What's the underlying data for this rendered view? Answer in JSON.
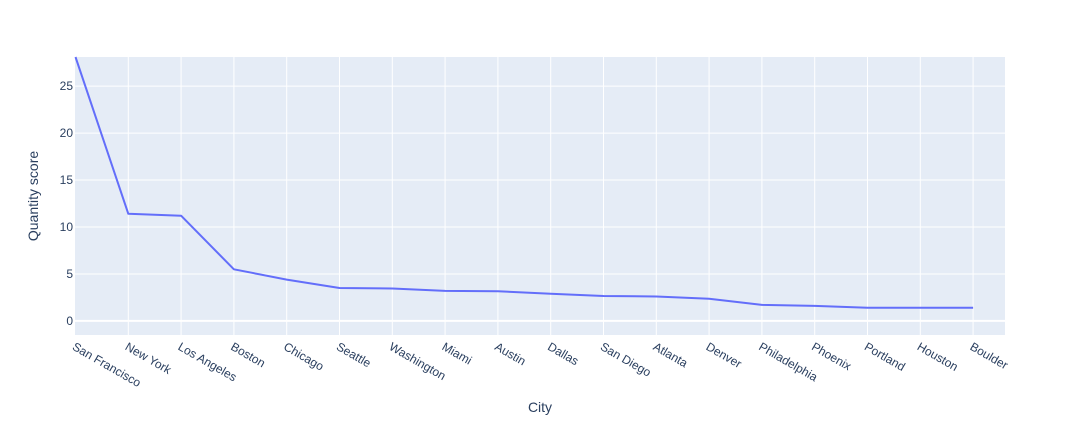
{
  "chart_data": {
    "type": "line",
    "title": "",
    "xlabel": "City",
    "ylabel": "Quantity score",
    "categories": [
      "San Francisco",
      "New York",
      "Los Angeles",
      "Boston",
      "Chicago",
      "Seattle",
      "Washington",
      "Miami",
      "Austin",
      "Dallas",
      "San Diego",
      "Atlanta",
      "Denver",
      "Philadelphia",
      "Phoenix",
      "Portland",
      "Houston",
      "Boulder"
    ],
    "series": [
      {
        "values": [
          28.1,
          11.4,
          11.2,
          5.5,
          4.4,
          3.5,
          3.45,
          3.2,
          3.15,
          2.9,
          2.65,
          2.6,
          2.35,
          1.7,
          1.6,
          1.4,
          1.4,
          1.4
        ],
        "color": "#636efa"
      }
    ],
    "yticks": [
      0,
      5,
      10,
      15,
      20,
      25
    ],
    "ylim": [
      -1.5,
      28.1
    ],
    "grid": true,
    "colors": {
      "plot_bg": "#e5ecf6",
      "grid": "#ffffff",
      "text": "#2a3f5f",
      "line": "#636efa"
    }
  }
}
